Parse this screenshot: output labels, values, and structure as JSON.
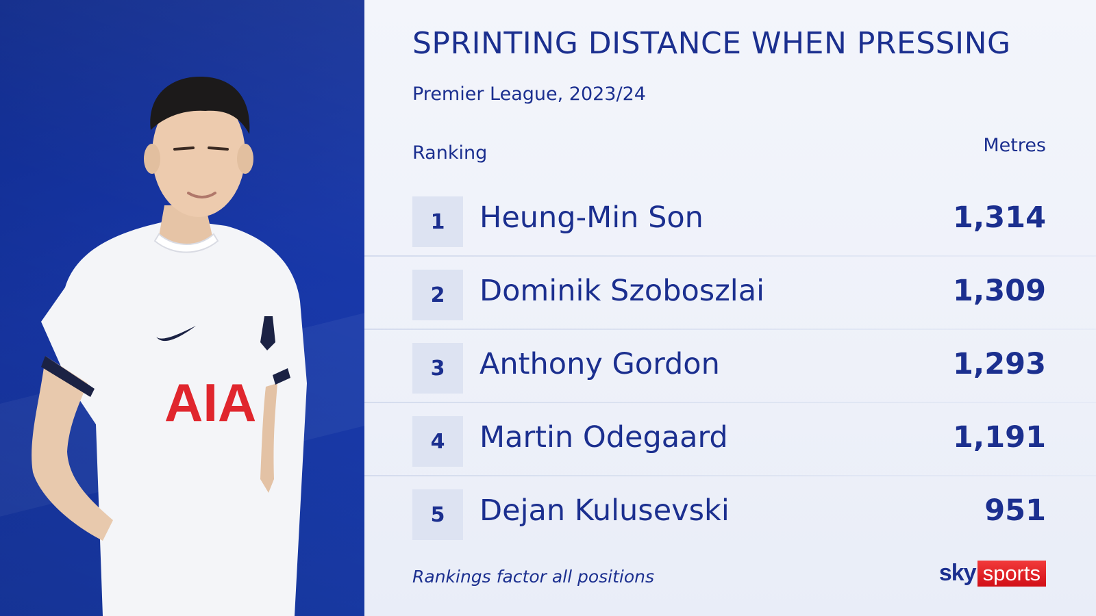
{
  "header": {
    "title": "SPRINTING DISTANCE WHEN PRESSING",
    "subtitle": "Premier League, 2023/24"
  },
  "columns": {
    "ranking": "Ranking",
    "metres": "Metres"
  },
  "chart_data": {
    "type": "table",
    "title": "SPRINTING DISTANCE WHEN PRESSING",
    "subtitle": "Premier League, 2023/24",
    "columns": [
      "Ranking",
      "Metres"
    ],
    "rows": [
      {
        "rank": "1",
        "name": "Heung-Min Son",
        "value": "1,314"
      },
      {
        "rank": "2",
        "name": "Dominik Szoboszlai",
        "value": "1,309"
      },
      {
        "rank": "3",
        "name": "Anthony Gordon",
        "value": "1,293"
      },
      {
        "rank": "4",
        "name": "Martin Odegaard",
        "value": "1,191"
      },
      {
        "rank": "5",
        "name": "Dejan Kulusevski",
        "value": "951"
      }
    ]
  },
  "footer": {
    "note": "Rankings factor all positions",
    "logo_sky": "sky",
    "logo_sports": "sports"
  },
  "colors": {
    "navy": "#1b2f8f",
    "panel_blue": "#1736a6",
    "logo_red": "#e01e26"
  },
  "icons": [
    "player-photo",
    "sky-sports-logo"
  ]
}
